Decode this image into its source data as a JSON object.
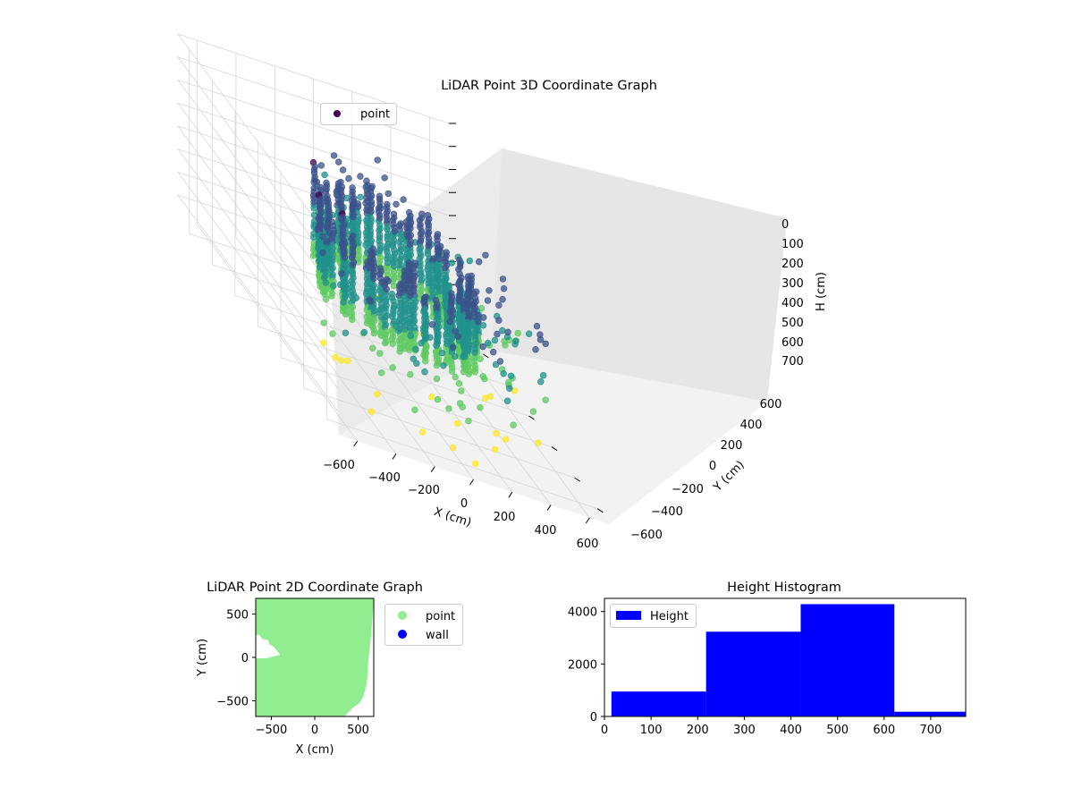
{
  "chart_data": [
    {
      "type": "scatter",
      "title": "LiDAR Point 3D Coordinate Graph",
      "xlabel": "X (cm)",
      "ylabel": "Y (cm)",
      "zlabel": "H (cm)",
      "x_ticks": [
        "−600",
        "−400",
        "−200",
        "0",
        "200",
        "400",
        "600"
      ],
      "y_ticks": [
        "−600",
        "−400",
        "−200",
        "0",
        "200",
        "400",
        "600"
      ],
      "z_ticks": [
        "0",
        "100",
        "200",
        "300",
        "400",
        "500",
        "600",
        "700"
      ],
      "xlim": [
        -700,
        700
      ],
      "ylim": [
        -700,
        700
      ],
      "zlim": [
        0,
        800
      ],
      "z_inverted": true,
      "legend": {
        "position": "top-left",
        "entries": [
          "point"
        ]
      },
      "colormap": [
        "#440154",
        "#3b528b",
        "#21918c",
        "#5ec962",
        "#fde725"
      ],
      "grid": true,
      "point_color": "#440154"
    },
    {
      "type": "scatter",
      "title": "LiDAR Point 2D Coordinate Graph",
      "xlabel": "X (cm)",
      "ylabel": "Y (cm)",
      "x_ticks": [
        -500,
        0,
        500
      ],
      "y_ticks": [
        -500,
        0,
        500
      ],
      "xlim": [
        -680,
        680
      ],
      "ylim": [
        -680,
        680
      ],
      "legend": {
        "position": "outside-right",
        "entries": [
          {
            "label": "point",
            "color": "#90ee90"
          },
          {
            "label": "wall",
            "color": "#0000ff"
          }
        ]
      },
      "point_region_outline": [
        [
          -680,
          680
        ],
        [
          680,
          680
        ],
        [
          650,
          250
        ],
        [
          620,
          0
        ],
        [
          600,
          -300
        ],
        [
          560,
          -450
        ],
        [
          520,
          -520
        ],
        [
          440,
          -580
        ],
        [
          380,
          -640
        ],
        [
          340,
          -680
        ],
        [
          -680,
          -680
        ],
        [
          -680,
          -10
        ],
        [
          -560,
          -10
        ],
        [
          -400,
          30
        ],
        [
          -420,
          60
        ],
        [
          -470,
          120
        ],
        [
          -520,
          150
        ],
        [
          -540,
          200
        ],
        [
          -600,
          210
        ],
        [
          -640,
          260
        ],
        [
          -680,
          260
        ]
      ],
      "wall_count": 0
    },
    {
      "type": "bar",
      "title": "Height Histogram",
      "xlabel": "",
      "ylabel": "",
      "series": [
        {
          "name": "Height",
          "color": "#0000ff"
        }
      ],
      "bins": [
        {
          "x0": 15,
          "x1": 218,
          "count": 950
        },
        {
          "x0": 218,
          "x1": 421,
          "count": 3230
        },
        {
          "x0": 421,
          "x1": 622,
          "count": 4280
        },
        {
          "x0": 622,
          "x1": 775,
          "count": 180
        }
      ],
      "x_ticks": [
        0,
        100,
        200,
        300,
        400,
        500,
        600,
        700
      ],
      "y_ticks": [
        0,
        2000,
        4000
      ],
      "xlim": [
        0,
        775
      ],
      "ylim": [
        0,
        4500
      ],
      "legend": {
        "position": "top-left",
        "entries": [
          "Height"
        ]
      }
    }
  ]
}
